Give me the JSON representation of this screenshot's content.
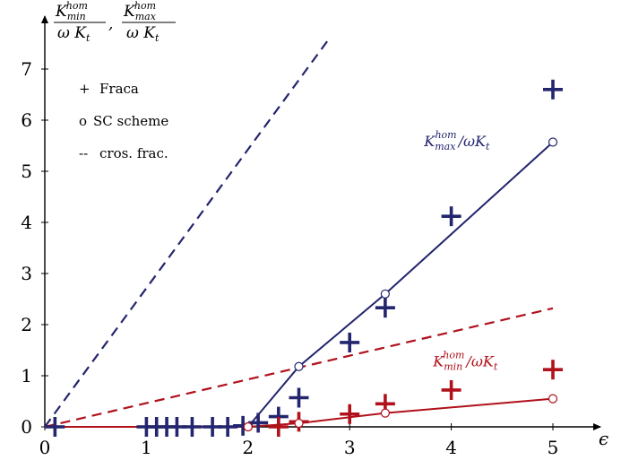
{
  "chart_data": {
    "type": "scatter",
    "title": "",
    "xlabel": "ϵ",
    "ylabel_parts": {
      "num1": "K",
      "sup1": "hom",
      "sub1": "min",
      "den1": "ω K",
      "den1_sub": "t",
      "sep": ",",
      "num2": "K",
      "sup2": "hom",
      "sub2": "max",
      "den2": "ω K",
      "den2_sub": "t"
    },
    "xlim": [
      0,
      5.3
    ],
    "ylim": [
      0,
      7.8
    ],
    "x_ticks": [
      0,
      1,
      2,
      3,
      4,
      5
    ],
    "y_ticks": [
      0,
      1,
      2,
      3,
      4,
      5,
      6,
      7
    ],
    "grid": false,
    "legend_position": "top-left",
    "legend": [
      {
        "marker": "+",
        "label": "Fraca"
      },
      {
        "marker": "o",
        "label": "SC scheme"
      },
      {
        "marker": "--",
        "label": "cros. frac."
      }
    ],
    "colors": {
      "max": "#23256e",
      "min": "#b0111b",
      "axis": "#000000"
    },
    "annotations": [
      {
        "series": "max",
        "x": 4.35,
        "y": 5.35,
        "base": "K",
        "sup": "hom",
        "sub": "max",
        "rest": "/ωK",
        "rest_sub": "t"
      },
      {
        "series": "min",
        "x": 4.35,
        "y": 1.15,
        "base": "K",
        "sup": "hom",
        "sub": "min",
        "rest": "/ωK",
        "rest_sub": "t"
      }
    ],
    "series": [
      {
        "key": "max_fraca",
        "color_key": "max",
        "kind": "plus",
        "x": [
          0.1,
          1.0,
          1.1,
          1.2,
          1.3,
          1.45,
          1.65,
          1.8,
          1.95,
          2.1,
          2.3,
          2.5,
          3.0,
          3.35,
          4.0,
          5.0
        ],
        "y": [
          0,
          0,
          0,
          0,
          0,
          0,
          0,
          0,
          0.02,
          0.08,
          0.2,
          0.57,
          1.65,
          2.33,
          4.12,
          6.6
        ]
      },
      {
        "key": "min_fraca",
        "color_key": "min",
        "kind": "plus",
        "x": [
          2.3,
          2.5,
          3.0,
          3.35,
          4.0,
          5.0
        ],
        "y": [
          0.0,
          0.1,
          0.25,
          0.45,
          0.72,
          1.12
        ]
      },
      {
        "key": "max_sc",
        "color_key": "max",
        "kind": "line_circles",
        "x": [
          0,
          2.0,
          2.5,
          3.35,
          5.0
        ],
        "y": [
          0,
          0.0,
          1.18,
          2.6,
          5.57
        ],
        "circles_from": 1
      },
      {
        "key": "min_sc",
        "color_key": "min",
        "kind": "line_circles",
        "x": [
          0,
          2.0,
          2.5,
          3.35,
          5.0
        ],
        "y": [
          0,
          0.0,
          0.07,
          0.27,
          0.55
        ],
        "circles_from": 1
      },
      {
        "key": "max_cross",
        "color_key": "max",
        "kind": "dashed",
        "x": [
          0,
          2.8
        ],
        "y": [
          0,
          7.6
        ]
      },
      {
        "key": "min_cross",
        "color_key": "min",
        "kind": "dashed",
        "x": [
          0,
          5.0
        ],
        "y": [
          0,
          2.32
        ]
      }
    ]
  }
}
